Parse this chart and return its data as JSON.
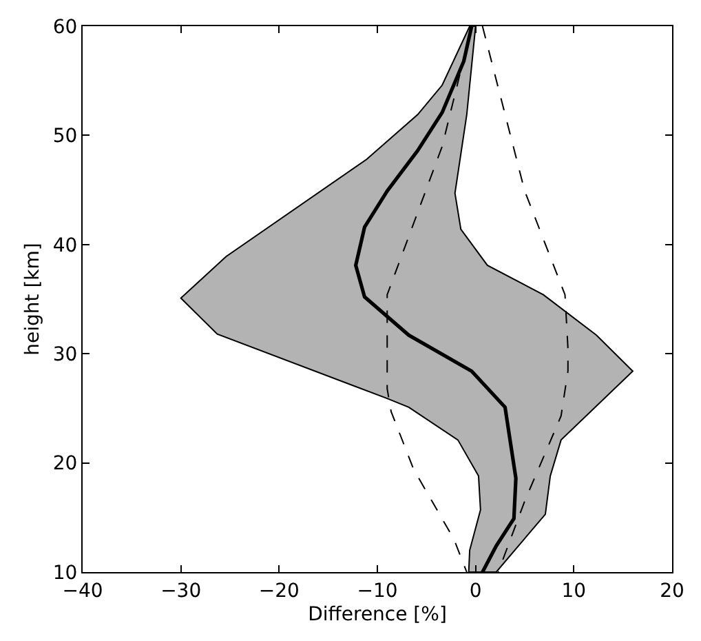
{
  "chart_data": {
    "type": "line",
    "xlabel": "Difference [%]",
    "ylabel": "height [km]",
    "xlim": [
      -40,
      20
    ],
    "ylim": [
      10,
      60
    ],
    "xticks": [
      {
        "value": -40,
        "label": "−40"
      },
      {
        "value": -30,
        "label": "−30"
      },
      {
        "value": -20,
        "label": "−20"
      },
      {
        "value": -10,
        "label": "−10"
      },
      0,
      10,
      20
    ],
    "yticks": [
      10,
      20,
      30,
      40,
      50,
      60
    ],
    "marker": "none",
    "series": [
      {
        "type": "area",
        "color": "#b3b3b3",
        "line_style": "solid",
        "x": [
          -0.6,
          -3.4,
          -5.9,
          -11.1,
          -25.4,
          -30.0,
          -26.3,
          -9.0,
          -6.8,
          -1.8,
          0.3,
          0.5,
          -0.6,
          -0.7,
          2.1,
          7.1,
          7.6,
          8.7,
          16.0,
          12.3,
          6.9,
          1.2,
          -1.5,
          -2.1,
          -0.9,
          0.0,
          -0.6
        ],
        "values": [
          60,
          54.6,
          51.9,
          47.8,
          38.9,
          35.1,
          31.8,
          25.9,
          25.1,
          22.1,
          18.8,
          15.7,
          12.0,
          10,
          10,
          15.3,
          18.8,
          22.1,
          28.4,
          31.7,
          35.4,
          38.1,
          41.4,
          44.7,
          51.9,
          60,
          60
        ]
      },
      {
        "color": "#000000",
        "line_style": "dashed",
        "x": [
          -0.4,
          -3.4,
          -9.0,
          -9.0,
          -9.0,
          -8.6,
          -6.3,
          -2.2,
          -0.9
        ],
        "values": [
          60,
          49.0,
          35.4,
          30.5,
          26.8,
          24.7,
          19.4,
          13.0,
          10
        ]
      },
      {
        "color": "#000000",
        "line_style": "dashed",
        "x": [
          0.7,
          5.0,
          9.1,
          9.4,
          9.4,
          8.7,
          5.0,
          2.3
        ],
        "values": [
          60,
          44.9,
          35.4,
          30.5,
          28.4,
          24.3,
          16.5,
          10
        ]
      },
      {
        "color": "#000000",
        "line_style": "solid",
        "x": [
          -0.4,
          -1.2,
          -3.4,
          -5.9,
          -9.0,
          -11.3,
          -12.2,
          -11.3,
          -6.8,
          -0.4,
          3.0,
          4.1,
          3.9,
          2.1,
          0.7
        ],
        "values": [
          60,
          56.8,
          52.1,
          48.6,
          44.9,
          41.6,
          38.1,
          35.2,
          31.7,
          28.4,
          25.1,
          18.6,
          14.9,
          12.4,
          10
        ]
      }
    ]
  }
}
